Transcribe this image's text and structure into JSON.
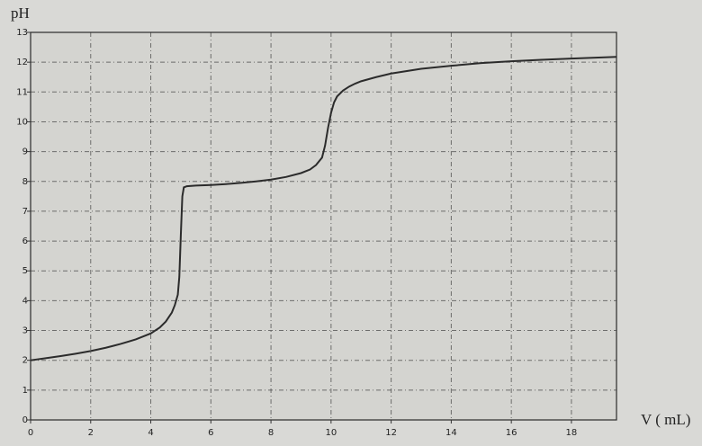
{
  "chart_data": {
    "type": "line",
    "title": "",
    "xlabel": "V ( mL)",
    "ylabel": "pH",
    "xlim": [
      0,
      19.5
    ],
    "ylim": [
      0,
      13
    ],
    "grid": true,
    "x_ticks": [
      0,
      2,
      4,
      6,
      8,
      10,
      12,
      14,
      16,
      18
    ],
    "y_ticks": [
      0,
      1,
      2,
      3,
      4,
      5,
      6,
      7,
      8,
      9,
      10,
      11,
      12,
      13
    ],
    "series": [
      {
        "x": [
          0,
          0.5,
          1,
          1.5,
          2,
          2.5,
          3,
          3.5,
          4,
          4.3,
          4.5,
          4.7,
          4.8,
          4.9,
          4.95,
          5.0,
          5.05,
          5.1,
          5.2,
          5.5,
          6,
          6.5,
          7,
          7.5,
          8,
          8.5,
          9,
          9.3,
          9.5,
          9.7,
          9.8,
          9.9,
          10.0,
          10.1,
          10.2,
          10.4,
          10.6,
          10.8,
          11,
          11.5,
          12,
          13,
          14,
          15,
          16,
          17,
          18,
          19.5
        ],
        "y": [
          2.0,
          2.07,
          2.14,
          2.22,
          2.31,
          2.42,
          2.55,
          2.7,
          2.9,
          3.1,
          3.3,
          3.6,
          3.85,
          4.2,
          4.8,
          6.2,
          7.5,
          7.8,
          7.84,
          7.86,
          7.88,
          7.91,
          7.95,
          8.0,
          8.06,
          8.15,
          8.28,
          8.4,
          8.55,
          8.8,
          9.2,
          9.8,
          10.3,
          10.65,
          10.85,
          11.05,
          11.18,
          11.28,
          11.36,
          11.5,
          11.62,
          11.78,
          11.88,
          11.97,
          12.03,
          12.08,
          12.12,
          12.18
        ]
      }
    ]
  }
}
